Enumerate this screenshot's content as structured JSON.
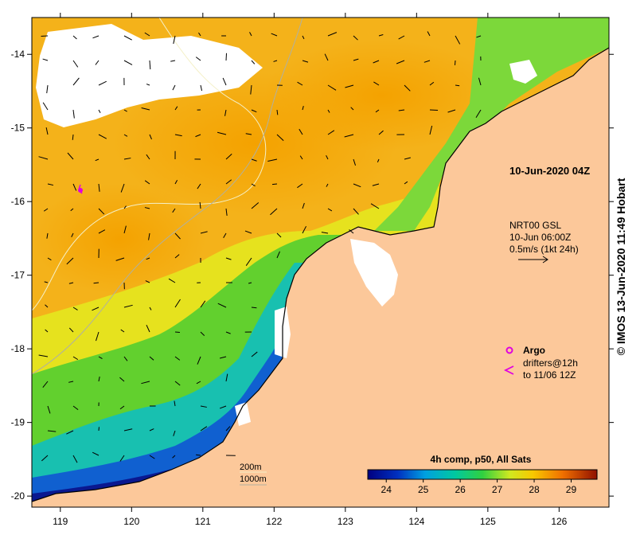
{
  "map": {
    "date_stamp": "10-Jun-2020 04Z",
    "x_ticks": [
      "119",
      "120",
      "121",
      "122",
      "123",
      "124",
      "125",
      "126"
    ],
    "y_ticks": [
      "-14",
      "-15",
      "-16",
      "-17",
      "-18",
      "-19",
      "-20"
    ],
    "x_range": [
      118.6,
      126.7
    ],
    "y_range": [
      -20.15,
      -13.5
    ],
    "currents": {
      "product": "NRT00 GSL",
      "time": "10-Jun 06:00Z",
      "scale_label": "0.5m/s (1kt 24h)"
    },
    "legend": {
      "argo_label": "Argo",
      "drifters_line1": "drifters@12h",
      "drifters_line2": "to 11/06 12Z",
      "argo_color": "#e000e0",
      "drifter_color": "#e000e0"
    },
    "isobaths": {
      "line1": "200m",
      "line2": "1000m"
    },
    "colorbar": {
      "title": "4h comp, p50, All Sats",
      "ticks": [
        "24",
        "25",
        "26",
        "27",
        "28",
        "29"
      ],
      "range": [
        23.5,
        29.7
      ]
    },
    "credit": "© IMOS 13-Jun-2020 11:49 Hobart"
  }
}
